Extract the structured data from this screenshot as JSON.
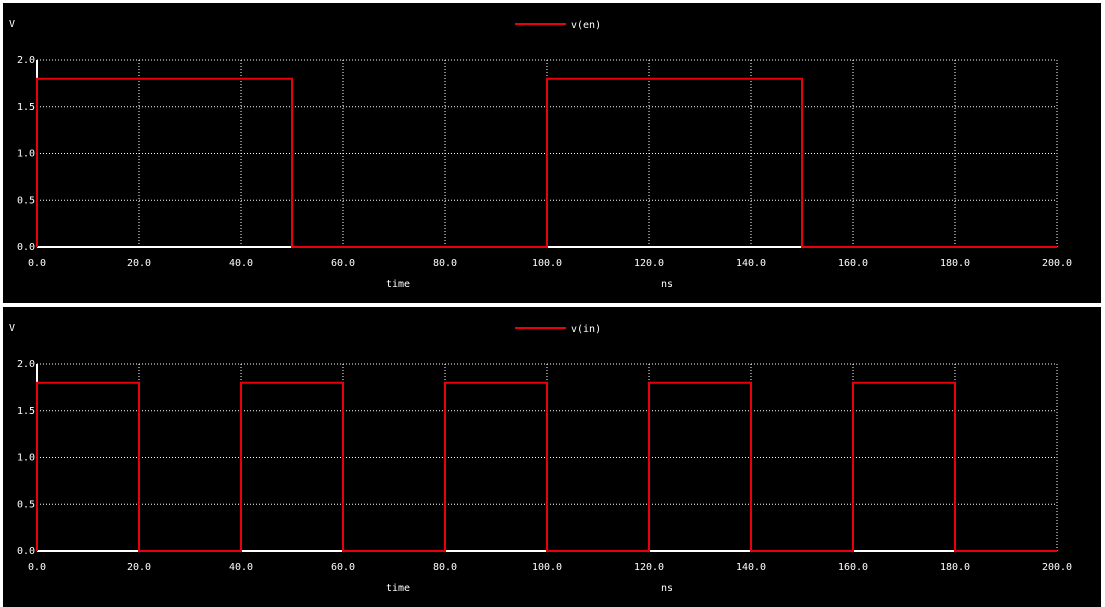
{
  "colors": {
    "background": "#000000",
    "axis": "#ffffff",
    "grid": "#ffffff",
    "trace": "#e8000b",
    "separator": "#ffffff"
  },
  "chart_data": [
    {
      "type": "line",
      "ylabel": "V",
      "xlabel": "time",
      "xunit": "ns",
      "xlim": [
        0,
        200
      ],
      "ylim": [
        0,
        2
      ],
      "x_ticks": [
        "0.0",
        "20.0",
        "40.0",
        "60.0",
        "80.0",
        "100.0",
        "120.0",
        "140.0",
        "160.0",
        "180.0",
        "200.0"
      ],
      "y_ticks": [
        "0.0",
        "0.5",
        "1.0",
        "1.5",
        "2.0"
      ],
      "grid": true,
      "legend_position": "top-center",
      "series": [
        {
          "name": "v(en)",
          "color": "#e8000b",
          "x": [
            0,
            0,
            50,
            50,
            100,
            100,
            150,
            150,
            200
          ],
          "y": [
            0,
            1.8,
            1.8,
            0,
            0,
            1.8,
            1.8,
            0,
            0
          ]
        }
      ]
    },
    {
      "type": "line",
      "ylabel": "V",
      "xlabel": "time",
      "xunit": "ns",
      "xlim": [
        0,
        200
      ],
      "ylim": [
        0,
        2
      ],
      "x_ticks": [
        "0.0",
        "20.0",
        "40.0",
        "60.0",
        "80.0",
        "100.0",
        "120.0",
        "140.0",
        "160.0",
        "180.0",
        "200.0"
      ],
      "y_ticks": [
        "0.0",
        "0.5",
        "1.0",
        "1.5",
        "2.0"
      ],
      "grid": true,
      "legend_position": "top-center",
      "series": [
        {
          "name": "v(in)",
          "color": "#e8000b",
          "x": [
            0,
            0,
            20,
            20,
            40,
            40,
            60,
            60,
            80,
            80,
            100,
            100,
            120,
            120,
            140,
            140,
            160,
            160,
            180,
            180,
            200
          ],
          "y": [
            0,
            1.8,
            1.8,
            0,
            0,
            1.8,
            1.8,
            0,
            0,
            1.8,
            1.8,
            0,
            0,
            1.8,
            1.8,
            0,
            0,
            1.8,
            1.8,
            0,
            0
          ]
        }
      ]
    }
  ]
}
